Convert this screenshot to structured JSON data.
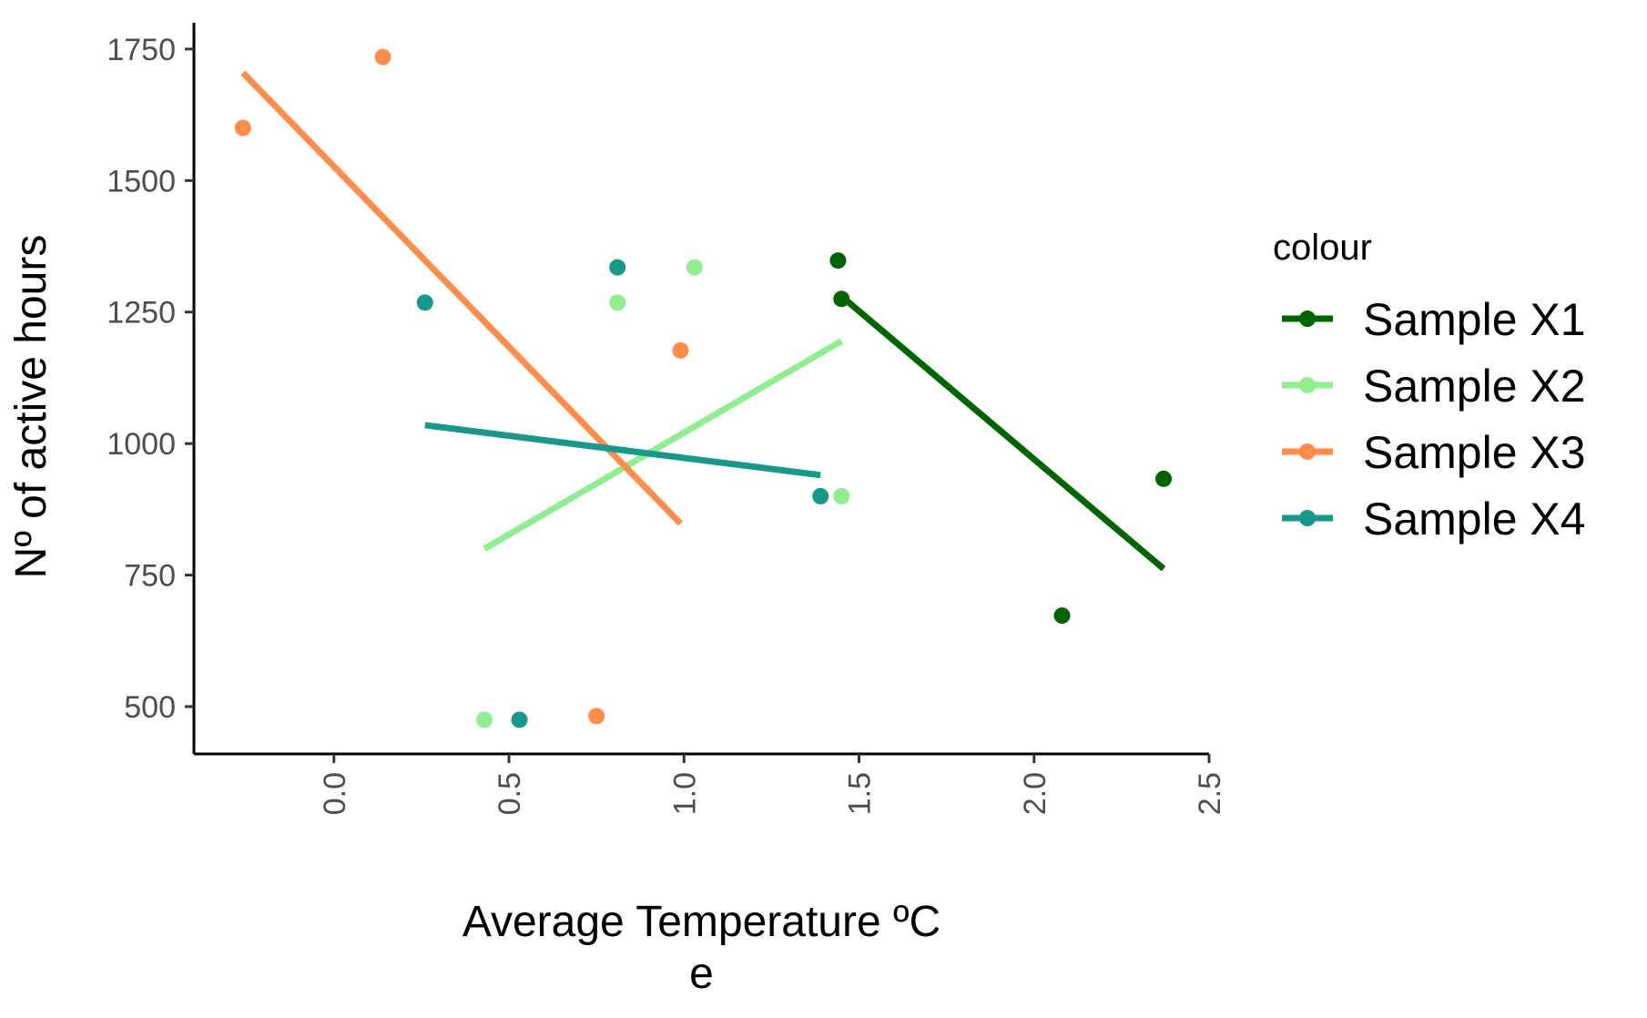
{
  "chart_data": {
    "type": "scatter",
    "xlabel": "Average Temperature ºC",
    "xlabel_line2": "e",
    "ylabel": "Nº of active hours",
    "xlim": [
      -0.4,
      2.5
    ],
    "ylim": [
      410,
      1800
    ],
    "xticks": [
      "0.0",
      "0.5",
      "1.0",
      "1.5",
      "2.0",
      "2.5"
    ],
    "yticks": [
      "500",
      "750",
      "1000",
      "1250",
      "1500",
      "1750"
    ],
    "grid": false,
    "legend": {
      "title": "colour",
      "position": "right"
    },
    "series": [
      {
        "name": "Sample X1",
        "color": "#006400",
        "points": [
          [
            1.44,
            1348
          ],
          [
            1.45,
            1275
          ],
          [
            2.08,
            673
          ],
          [
            2.37,
            933
          ]
        ],
        "fit": [
          [
            1.45,
            1280
          ],
          [
            2.37,
            762
          ]
        ]
      },
      {
        "name": "Sample X2",
        "color": "#90EE90",
        "points": [
          [
            0.43,
            475
          ],
          [
            0.81,
            1268
          ],
          [
            1.03,
            1335
          ],
          [
            1.45,
            900
          ]
        ],
        "fit": [
          [
            0.43,
            800
          ],
          [
            1.45,
            1195
          ]
        ]
      },
      {
        "name": "Sample X3",
        "color": "#FF8C4B",
        "points": [
          [
            -0.26,
            1600
          ],
          [
            0.14,
            1735
          ],
          [
            0.75,
            482
          ],
          [
            0.99,
            1177
          ]
        ],
        "fit": [
          [
            -0.26,
            1705
          ],
          [
            0.99,
            848
          ]
        ]
      },
      {
        "name": "Sample X4",
        "color": "#17988A",
        "points": [
          [
            0.26,
            1268
          ],
          [
            0.53,
            475
          ],
          [
            0.81,
            1335
          ],
          [
            1.39,
            900
          ]
        ],
        "fit": [
          [
            0.26,
            1035
          ],
          [
            1.39,
            940
          ]
        ]
      }
    ]
  }
}
